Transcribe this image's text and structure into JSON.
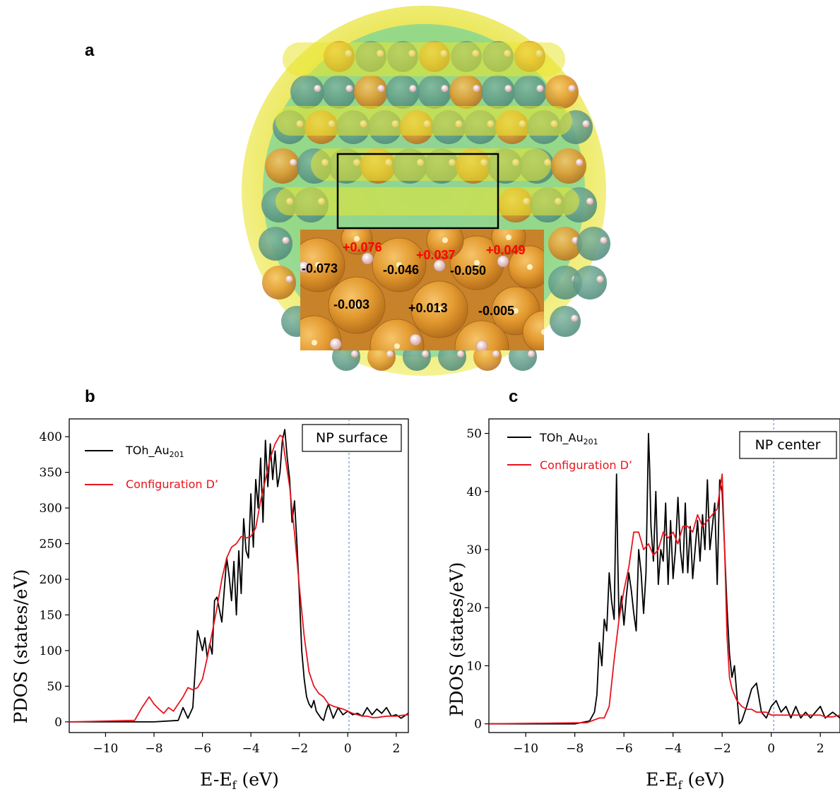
{
  "panel_labels": {
    "a": "a",
    "b": "b",
    "c": "c"
  },
  "figure_a": {
    "colors": {
      "isosurface_yellow": "#e8e22a",
      "isosurface_cyan": "#2ec8c0",
      "gold_atom": "#e0902a",
      "hydrogen": "#f2cfc0",
      "charge_positive": "#ff0000",
      "charge_negative": "#000000"
    },
    "charges_positive": [
      "+0.076",
      "+0.037",
      "+0.049"
    ],
    "charges_negative_top": [
      "-0.073",
      "-0.046",
      "-0.050"
    ],
    "charges_sublayer": [
      "-0.003",
      "+0.013",
      "-0.005"
    ]
  },
  "chart_data": [
    {
      "type": "line",
      "xlabel": "E-E",
      "xlabel_sub": "f",
      "xlabel_unit": "(eV)",
      "ylabel": "PDOS (states/eV)",
      "xlim": [
        -11.5,
        2.5
      ],
      "ylim": [
        -15,
        425
      ],
      "xticks": [
        -10,
        -8,
        -6,
        -4,
        -2,
        0,
        2
      ],
      "yticks": [
        0,
        50,
        100,
        150,
        200,
        250,
        300,
        350,
        400
      ],
      "fermi_line_x": 0.05,
      "box_label": "NP surface",
      "legend_position": "top-left",
      "series": [
        {
          "name": "TOh_Au",
          "name_sub": "201",
          "color": "#000000",
          "x": [
            -11.5,
            -8.0,
            -7.0,
            -6.8,
            -6.6,
            -6.4,
            -6.2,
            -6.0,
            -5.9,
            -5.8,
            -5.7,
            -5.6,
            -5.5,
            -5.4,
            -5.2,
            -5.0,
            -4.9,
            -4.8,
            -4.7,
            -4.6,
            -4.5,
            -4.4,
            -4.3,
            -4.2,
            -4.1,
            -4.0,
            -3.9,
            -3.8,
            -3.7,
            -3.6,
            -3.5,
            -3.4,
            -3.3,
            -3.2,
            -3.1,
            -3.0,
            -2.9,
            -2.8,
            -2.7,
            -2.6,
            -2.5,
            -2.4,
            -2.3,
            -2.2,
            -2.1,
            -2.0,
            -1.9,
            -1.8,
            -1.7,
            -1.6,
            -1.5,
            -1.4,
            -1.3,
            -1.2,
            -1.1,
            -1.0,
            -0.9,
            -0.8,
            -0.6,
            -0.4,
            -0.2,
            0.0,
            0.2,
            0.4,
            0.6,
            0.8,
            1.0,
            1.2,
            1.4,
            1.6,
            1.8,
            2.0,
            2.2,
            2.5
          ],
          "y": [
            0,
            0,
            2,
            20,
            5,
            20,
            128,
            100,
            118,
            90,
            110,
            95,
            170,
            175,
            140,
            230,
            205,
            170,
            225,
            150,
            240,
            180,
            285,
            240,
            230,
            320,
            245,
            340,
            300,
            370,
            280,
            395,
            330,
            390,
            340,
            380,
            330,
            350,
            395,
            410,
            370,
            340,
            280,
            310,
            250,
            180,
            100,
            60,
            35,
            25,
            20,
            30,
            15,
            10,
            5,
            2,
            15,
            25,
            5,
            20,
            10,
            15,
            10,
            12,
            8,
            20,
            10,
            18,
            12,
            20,
            8,
            10,
            5,
            12
          ]
        },
        {
          "name": "Configuration D’",
          "color": "#e8141e",
          "x": [
            -11.5,
            -8.8,
            -8.5,
            -8.2,
            -8.0,
            -7.8,
            -7.6,
            -7.4,
            -7.2,
            -7.0,
            -6.8,
            -6.6,
            -6.4,
            -6.2,
            -6.0,
            -5.8,
            -5.6,
            -5.4,
            -5.2,
            -5.0,
            -4.8,
            -4.6,
            -4.4,
            -4.2,
            -4.0,
            -3.8,
            -3.6,
            -3.4,
            -3.2,
            -3.0,
            -2.8,
            -2.7,
            -2.6,
            -2.4,
            -2.2,
            -2.0,
            -1.8,
            -1.6,
            -1.4,
            -1.2,
            -1.0,
            -0.8,
            -0.6,
            -0.4,
            -0.2,
            0.0,
            0.2,
            0.4,
            0.6,
            0.8,
            1.0,
            1.2,
            1.4,
            1.6,
            1.8,
            2.0,
            2.2,
            2.5
          ],
          "y": [
            0,
            2,
            20,
            35,
            25,
            18,
            12,
            20,
            15,
            25,
            35,
            48,
            45,
            48,
            60,
            90,
            125,
            160,
            200,
            230,
            245,
            250,
            260,
            258,
            260,
            272,
            310,
            340,
            370,
            390,
            402,
            400,
            375,
            330,
            265,
            190,
            120,
            70,
            50,
            40,
            35,
            25,
            22,
            20,
            18,
            15,
            12,
            10,
            8,
            8,
            6,
            6,
            7,
            8,
            8,
            8,
            9,
            10
          ]
        }
      ]
    },
    {
      "type": "line",
      "xlabel": "E-E",
      "xlabel_sub": "f",
      "xlabel_unit": "(eV)",
      "ylabel": "PDOS (states/eV)",
      "xlim": [
        -11.5,
        2.8
      ],
      "ylim": [
        -1.5,
        52.5
      ],
      "xticks": [
        -10,
        -8,
        -6,
        -4,
        -2,
        0,
        2
      ],
      "yticks": [
        0,
        10,
        20,
        30,
        40,
        50
      ],
      "fermi_line_x": 0.1,
      "box_label": "NP center",
      "legend_position": "top-left",
      "series": [
        {
          "name": "TOh_Au",
          "name_sub": "201",
          "color": "#000000",
          "x": [
            -11.5,
            -8.0,
            -7.4,
            -7.2,
            -7.1,
            -7.0,
            -6.9,
            -6.8,
            -6.7,
            -6.6,
            -6.5,
            -6.4,
            -6.3,
            -6.25,
            -6.2,
            -6.1,
            -6.0,
            -5.9,
            -5.8,
            -5.7,
            -5.6,
            -5.5,
            -5.4,
            -5.3,
            -5.2,
            -5.1,
            -5.0,
            -4.95,
            -4.9,
            -4.8,
            -4.7,
            -4.6,
            -4.5,
            -4.4,
            -4.3,
            -4.2,
            -4.1,
            -4.0,
            -3.9,
            -3.8,
            -3.7,
            -3.6,
            -3.5,
            -3.4,
            -3.3,
            -3.2,
            -3.1,
            -3.0,
            -2.9,
            -2.8,
            -2.7,
            -2.6,
            -2.5,
            -2.4,
            -2.3,
            -2.2,
            -2.1,
            -2.0,
            -1.9,
            -1.8,
            -1.7,
            -1.6,
            -1.5,
            -1.4,
            -1.3,
            -1.2,
            -1.0,
            -0.8,
            -0.6,
            -0.4,
            -0.2,
            0.0,
            0.2,
            0.4,
            0.6,
            0.8,
            1.0,
            1.2,
            1.4,
            1.6,
            1.8,
            2.0,
            2.2,
            2.5,
            2.8
          ],
          "y": [
            0,
            0,
            0.5,
            2,
            5,
            14,
            10,
            18,
            16,
            26,
            21,
            18,
            43,
            28,
            18,
            22,
            17,
            22,
            26,
            23,
            19,
            16,
            30,
            26,
            19,
            26,
            50,
            44,
            34,
            28,
            40,
            24,
            30,
            28,
            38,
            24,
            35,
            25,
            30,
            39,
            30,
            26,
            38,
            26,
            34,
            25,
            30,
            35,
            28,
            36,
            30,
            42,
            30,
            34,
            38,
            24,
            42,
            40,
            30,
            20,
            12,
            8,
            10,
            5,
            0,
            0.5,
            3,
            6,
            7,
            2,
            1,
            3,
            4,
            2,
            3,
            1,
            3,
            1,
            2,
            1,
            2,
            3,
            1,
            2,
            1
          ]
        },
        {
          "name": "Configuration D’",
          "color": "#e8141e",
          "x": [
            -11.5,
            -7.5,
            -7.0,
            -6.8,
            -6.6,
            -6.4,
            -6.2,
            -6.0,
            -5.8,
            -5.6,
            -5.4,
            -5.2,
            -5.0,
            -4.8,
            -4.6,
            -4.4,
            -4.2,
            -4.0,
            -3.8,
            -3.6,
            -3.4,
            -3.2,
            -3.0,
            -2.8,
            -2.6,
            -2.4,
            -2.2,
            -2.1,
            -2.0,
            -1.9,
            -1.8,
            -1.7,
            -1.6,
            -1.5,
            -1.4,
            -1.2,
            -1.0,
            -0.8,
            -0.6,
            -0.4,
            -0.2,
            0.0,
            0.2,
            0.4,
            0.6,
            0.8,
            1.0,
            1.2,
            1.4,
            1.6,
            1.8,
            2.0,
            2.2,
            2.5,
            2.8
          ],
          "y": [
            0,
            0.2,
            1,
            1,
            3,
            11,
            18,
            23,
            27,
            33,
            33,
            30,
            31,
            29,
            30,
            33,
            32,
            33,
            31,
            34,
            34,
            33,
            36,
            34,
            35,
            36,
            37,
            40,
            43,
            30,
            15,
            8,
            6,
            5,
            4,
            3,
            2.5,
            2.5,
            2,
            2,
            2,
            1.5,
            1.5,
            1.5,
            1.5,
            1.5,
            1.5,
            1.5,
            1.5,
            1.5,
            1.5,
            1.5,
            1.2,
            1.2,
            1.5
          ]
        }
      ]
    }
  ]
}
